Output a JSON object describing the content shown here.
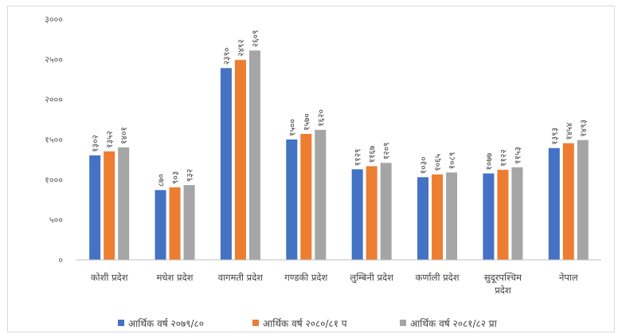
{
  "chart_data": {
    "type": "bar",
    "title": "",
    "xlabel": "",
    "ylabel": "",
    "ylim": [
      0,
      3000
    ],
    "y_ticks": [
      0,
      500,
      1000,
      1500,
      2000,
      2500,
      3000
    ],
    "y_tick_labels": [
      "०",
      "५००",
      "१०००",
      "१५००",
      "२०००",
      "२५००",
      "३०००"
    ],
    "grid": false,
    "legend_position": "bottom",
    "categories": [
      [
        "कोशी प्रदेश"
      ],
      [
        "मधेश प्रदेश"
      ],
      [
        "वागमती प्रदेश"
      ],
      [
        "गण्डकी प्रदेश"
      ],
      [
        "लुम्बिनी प्रदेश"
      ],
      [
        "कर्णाली प्रदेश"
      ],
      [
        "सुदूरपश्चिम",
        "प्रदेश"
      ],
      [
        "नेपाल"
      ]
    ],
    "series": [
      {
        "name": "आर्थिक वर्ष २०७९/८०",
        "color": "#4472c4",
        "values": [
          1302,
          870,
          2390,
          1500,
          1129,
          1030,
          1077,
          1393
        ],
        "labels": [
          "१३०२",
          "८७०",
          "२३९०",
          "१५००",
          "११२९",
          "१०३०",
          "१०७७",
          "१३९३"
        ]
      },
      {
        "name": "आर्थिक वर्ष २०८०/८१ प",
        "color": "#ed7d31",
        "values": [
          1352,
          903,
          2492,
          1570,
          1167,
          1065,
          1122,
          1454
        ],
        "labels": [
          "१३५२",
          "९०३",
          "२४९२",
          "१५७०",
          "११६७",
          "१०६५",
          "११२२",
          "१४५४"
        ]
      },
      {
        "name": "आर्थिक वर्ष २०८१/८२ प्रा",
        "color": "#a5a5a5",
        "values": [
          1401,
          932,
          2609,
          1620,
          1209,
          1089,
          1153,
          1493
        ],
        "labels": [
          "१४०१",
          "९३२",
          "२६०९",
          "१६२०",
          "१२०९",
          "१०८९",
          "११५३",
          "१४९३"
        ]
      }
    ]
  }
}
